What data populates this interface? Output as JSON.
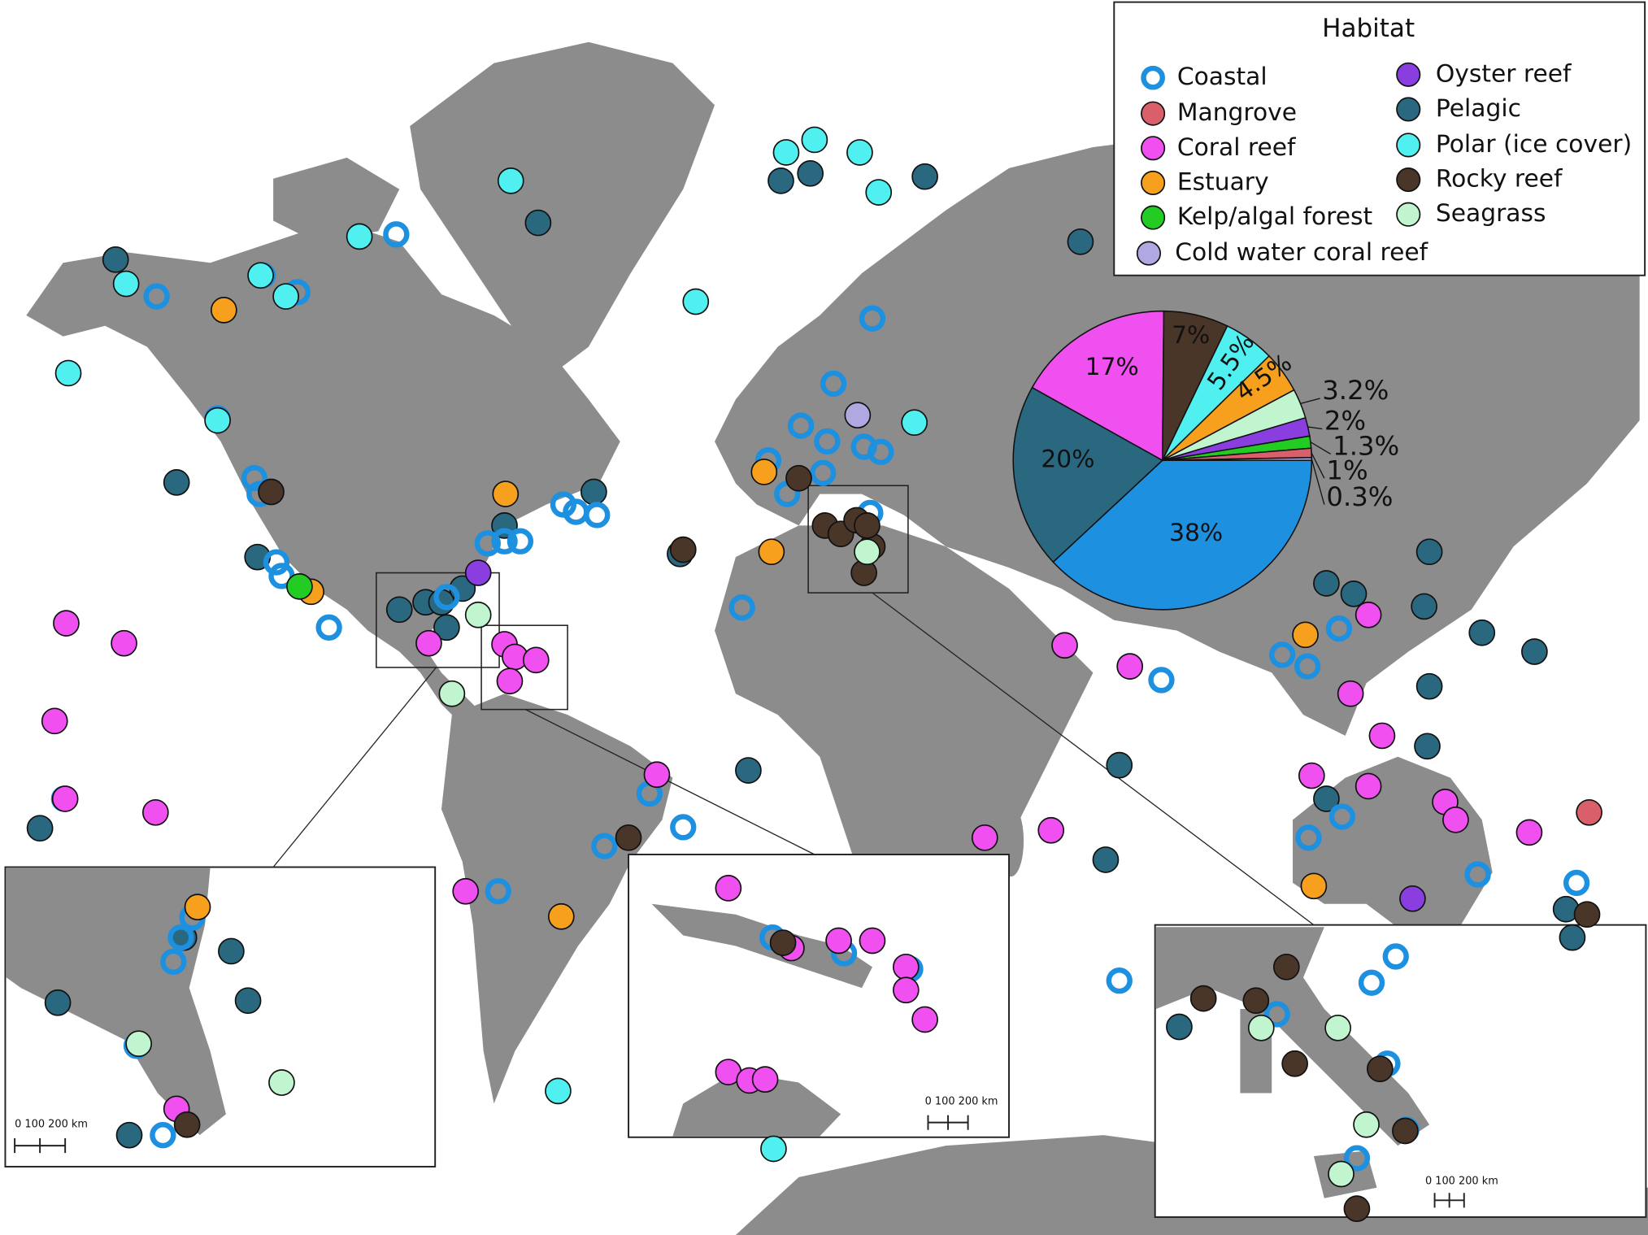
{
  "legend": {
    "title": "Habitat"
  },
  "chart_data": {
    "type": "pie",
    "categories": [
      "Coastal",
      "Mangrove",
      "Coral reef",
      "Estuary",
      "Kelp/algal forest",
      "Cold water coral reef",
      "Oyster reef",
      "Pelagic",
      "Polar (ice cover)",
      "Rocky reef",
      "Seagrass"
    ],
    "colors": [
      "#1e90e0",
      "#d9606a",
      "#f050f0",
      "#f7a01e",
      "#22cc22",
      "#b0a8e0",
      "#8a3ee0",
      "#2a6880",
      "#50f0f0",
      "#4a3628",
      "#c0f5d0"
    ],
    "values": [
      38,
      1,
      17,
      4.5,
      1.3,
      0.3,
      2,
      20,
      5.5,
      7,
      3.2
    ],
    "value_labels": [
      "38%",
      "1%",
      "17%",
      "4.5%",
      "1.3%",
      "0.3%",
      "2%",
      "20%",
      "5.5%",
      "7%",
      "3.2%"
    ]
  },
  "insets": [
    {
      "scale_label": "0 100 200 km"
    },
    {
      "scale_label": "0 100 200 km"
    },
    {
      "scale_label": "0 100 200 km"
    }
  ]
}
